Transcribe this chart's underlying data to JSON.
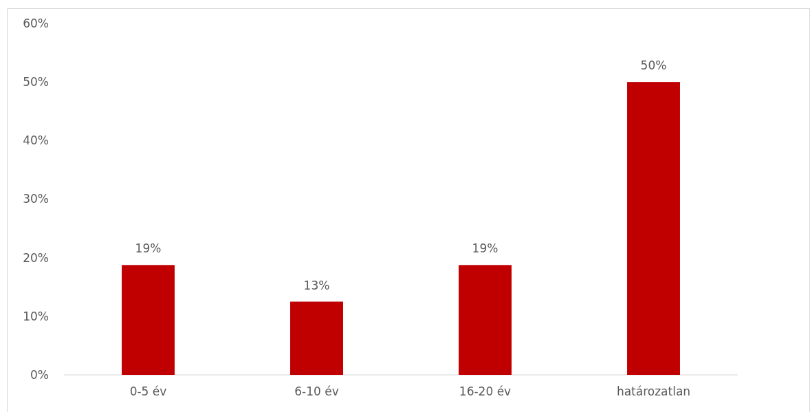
{
  "chart_data": {
    "type": "bar",
    "categories": [
      "0-5 év",
      "6-10 év",
      "16-20 év",
      "határozatlan"
    ],
    "values": [
      18.75,
      12.5,
      18.75,
      50
    ],
    "color": "#c00000",
    "value_labels": [
      "19%",
      "13%",
      "19%",
      "50%"
    ],
    "ylim": [
      0,
      60
    ],
    "yticks": [
      {
        "value": 0,
        "label": "0%"
      },
      {
        "value": 10,
        "label": "10%"
      },
      {
        "value": 20,
        "label": "20%"
      },
      {
        "value": 30,
        "label": "30%"
      },
      {
        "value": 40,
        "label": "40%"
      },
      {
        "value": 50,
        "label": "50%"
      },
      {
        "value": 60,
        "label": "60%"
      }
    ],
    "grid": false
  }
}
